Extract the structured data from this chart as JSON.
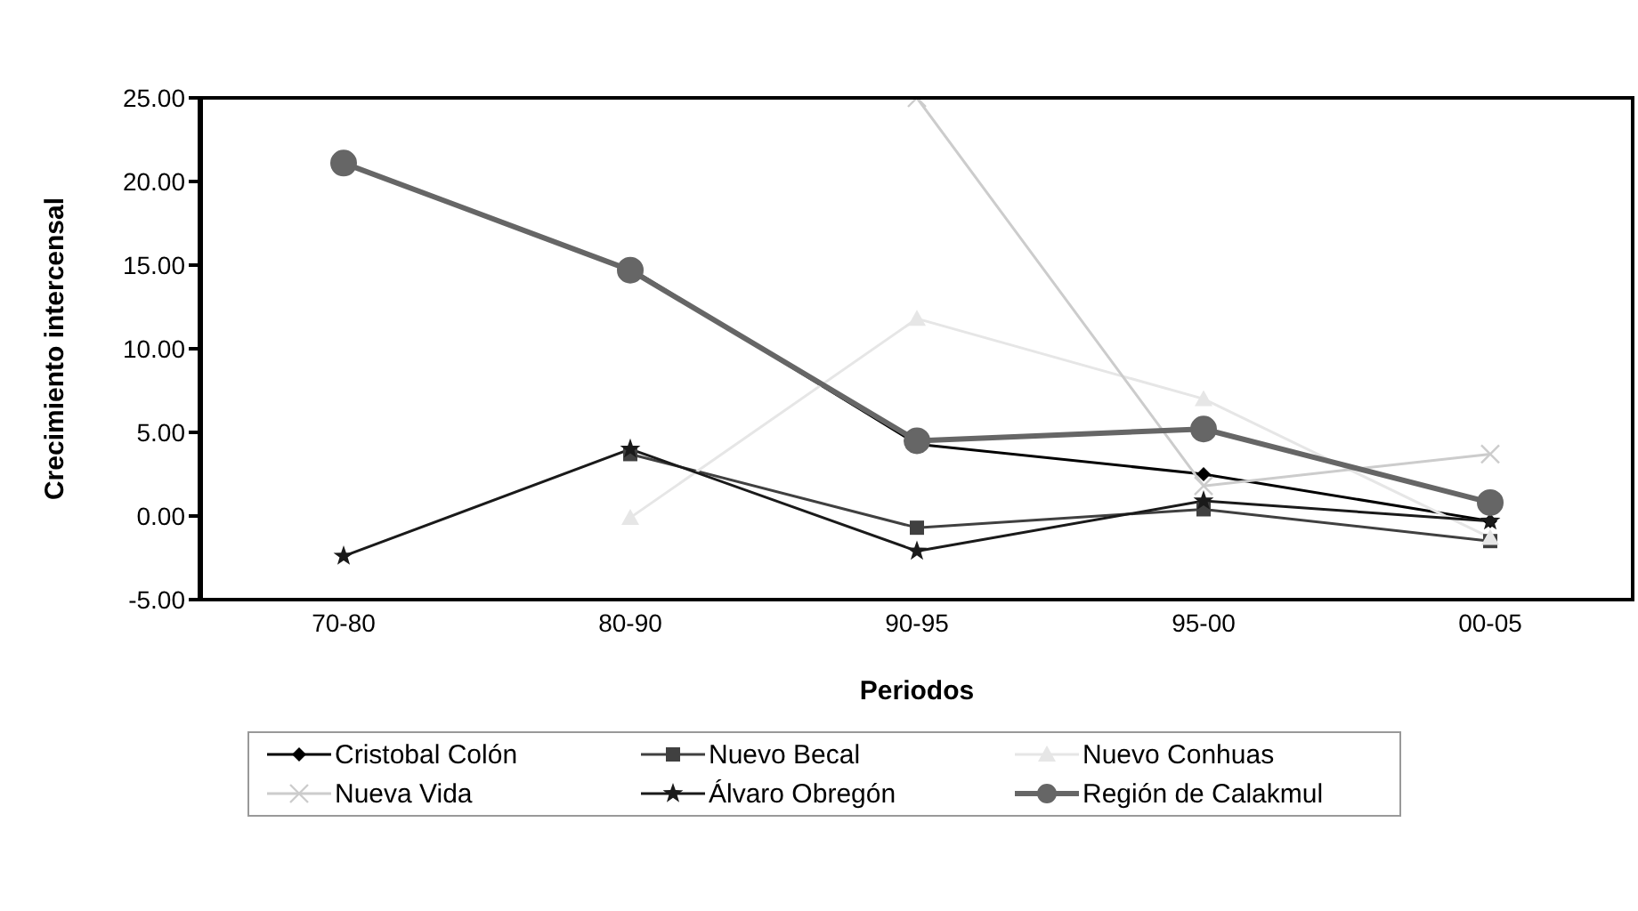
{
  "chart_data": {
    "type": "line",
    "xlabel": "Periodos",
    "ylabel": "Crecimiento intercensal",
    "categories": [
      "70-80",
      "80-90",
      "90-95",
      "95-00",
      "00-05"
    ],
    "series": [
      {
        "name": "Cristobal Colón",
        "color": "#000000",
        "marker": "diamond",
        "values": [
          null,
          14.8,
          4.3,
          2.5,
          -0.3
        ]
      },
      {
        "name": "Nuevo Becal",
        "color": "#404040",
        "marker": "square",
        "values": [
          null,
          3.7,
          -0.7,
          0.4,
          -1.5
        ]
      },
      {
        "name": "Nuevo Conhuas",
        "color": "#e6e6e6",
        "marker": "triangle",
        "values": [
          null,
          -0.1,
          11.8,
          7.0,
          -1.3
        ]
      },
      {
        "name": "Nueva Vida",
        "color": "#cccccc",
        "marker": "cross",
        "values": [
          null,
          null,
          25.0,
          1.8,
          3.7
        ]
      },
      {
        "name": "Álvaro Obregón",
        "color": "#1a1a1a",
        "marker": "star",
        "values": [
          -2.4,
          4.0,
          -2.1,
          0.9,
          -0.3
        ]
      },
      {
        "name": "Región de Calakmul",
        "color": "#666666",
        "marker": "circle",
        "values": [
          21.1,
          14.7,
          4.5,
          5.2,
          0.8
        ]
      }
    ],
    "ylim": [
      -5,
      25
    ],
    "yticks": [
      {
        "value": -5,
        "label": "-5.00"
      },
      {
        "value": 0,
        "label": "0.00"
      },
      {
        "value": 5,
        "label": "5.00"
      },
      {
        "value": 10,
        "label": "10.00"
      },
      {
        "value": 15,
        "label": "15.00"
      },
      {
        "value": 20,
        "label": "20.00"
      },
      {
        "value": 25,
        "label": "25.00"
      }
    ],
    "grid": false,
    "legend": "bottom"
  }
}
